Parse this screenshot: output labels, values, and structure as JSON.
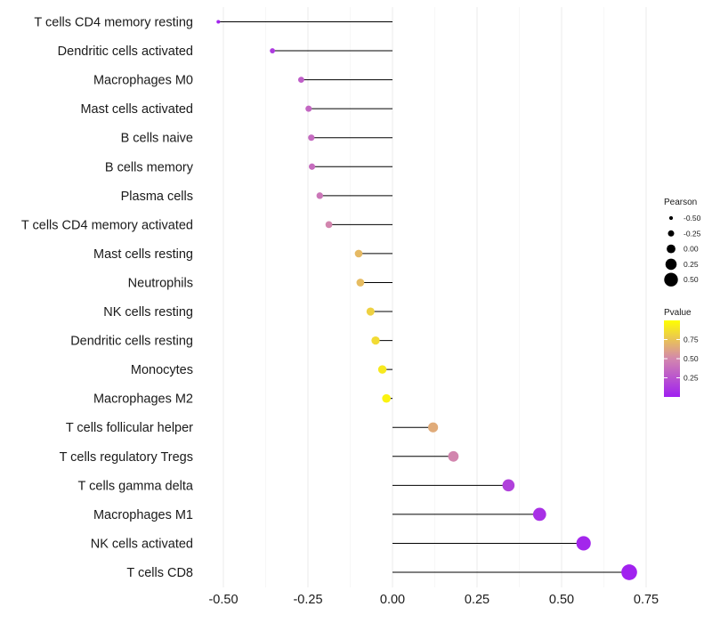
{
  "chart_data": {
    "type": "lollipop",
    "title": "",
    "xlabel": "",
    "ylabel": "",
    "xlim": [
      -0.57,
      0.77
    ],
    "x_ticks": [
      -0.5,
      -0.25,
      0.0,
      0.25,
      0.5,
      0.75
    ],
    "x_tick_labels": [
      "-0.50",
      "-0.25",
      "0.00",
      "0.25",
      "0.50",
      "0.75"
    ],
    "baseline": 0,
    "grid": true,
    "points": [
      {
        "category": "T cells CD4 memory resting",
        "pearson": -0.515,
        "pvalue": 0.02
      },
      {
        "category": "Dendritic cells activated",
        "pearson": -0.355,
        "pvalue": 0.13
      },
      {
        "category": "Macrophages M0",
        "pearson": -0.27,
        "pvalue": 0.3
      },
      {
        "category": "Mast cells activated",
        "pearson": -0.248,
        "pvalue": 0.34
      },
      {
        "category": "B cells naive",
        "pearson": -0.24,
        "pvalue": 0.36
      },
      {
        "category": "B cells memory",
        "pearson": -0.238,
        "pvalue": 0.37
      },
      {
        "category": "Plasma cells",
        "pearson": -0.215,
        "pvalue": 0.42
      },
      {
        "category": "T cells CD4 memory activated",
        "pearson": -0.188,
        "pvalue": 0.49
      },
      {
        "category": "Mast cells resting",
        "pearson": -0.1,
        "pvalue": 0.71
      },
      {
        "category": "Neutrophils",
        "pearson": -0.095,
        "pvalue": 0.72
      },
      {
        "category": "NK cells resting",
        "pearson": -0.065,
        "pvalue": 0.81
      },
      {
        "category": "Dendritic cells resting",
        "pearson": -0.05,
        "pvalue": 0.85
      },
      {
        "category": "Monocytes",
        "pearson": -0.03,
        "pvalue": 0.91
      },
      {
        "category": "Macrophages M2",
        "pearson": -0.018,
        "pvalue": 0.95
      },
      {
        "category": "T cells follicular helper",
        "pearson": 0.12,
        "pvalue": 0.65
      },
      {
        "category": "T cells regulatory  Tregs ",
        "pearson": 0.18,
        "pvalue": 0.49
      },
      {
        "category": "T cells gamma delta",
        "pearson": 0.343,
        "pvalue": 0.16
      },
      {
        "category": "Macrophages M1",
        "pearson": 0.435,
        "pvalue": 0.08
      },
      {
        "category": "NK cells activated",
        "pearson": 0.565,
        "pvalue": 0.03
      },
      {
        "category": "T cells CD8",
        "pearson": 0.7,
        "pvalue": 0.01
      }
    ],
    "legend_size": {
      "title": "Pearson",
      "values": [
        -0.5,
        -0.25,
        0.0,
        0.25,
        0.5
      ],
      "labels": [
        "-0.50",
        "-0.25",
        "0.00",
        "0.25",
        "0.50"
      ]
    },
    "legend_color": {
      "title": "Pvalue",
      "ticks": [
        0.25,
        0.5,
        0.75
      ],
      "tick_labels": [
        "0.25",
        "0.50",
        "0.75"
      ],
      "range": [
        0.0,
        1.0
      ],
      "color_low": "#a020f0",
      "color_mid": "#d387ad",
      "color_high": "#ffff00"
    },
    "colors": {
      "stem": "#000000",
      "grid": "#ebebeb",
      "label": "#1a1a1a"
    }
  }
}
